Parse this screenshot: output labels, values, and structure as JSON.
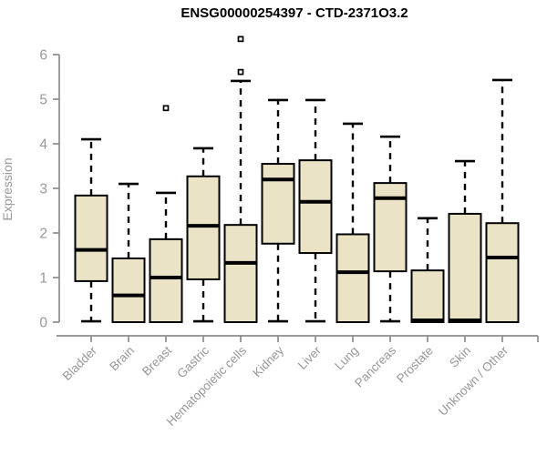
{
  "chart": {
    "title": "ENSG00000254397 - CTD-2371O3.2",
    "ylabel": "Expression"
  },
  "chart_data": {
    "type": "boxplot",
    "title": "ENSG00000254397 - CTD-2371O3.2",
    "xlabel": "",
    "ylabel": "Expression",
    "ylim": [
      0,
      6.4
    ],
    "yticks": [
      0,
      1,
      2,
      3,
      4,
      5,
      6
    ],
    "grid": false,
    "legend": "none",
    "categories": [
      "Bladder",
      "Brain",
      "Breast",
      "Gastric",
      "Hematopoietic cells",
      "Kidney",
      "Liver",
      "Lung",
      "Pancreas",
      "Prostate",
      "Skin",
      "Unknown / Other"
    ],
    "series": [
      {
        "category": "Bladder",
        "whisker_low": 0.02,
        "q1": 0.92,
        "median": 1.62,
        "q3": 2.84,
        "whisker_high": 4.1,
        "outliers": []
      },
      {
        "category": "Brain",
        "whisker_low": 0.0,
        "q1": 0.0,
        "median": 0.6,
        "q3": 1.43,
        "whisker_high": 3.1,
        "outliers": []
      },
      {
        "category": "Breast",
        "whisker_low": 0.0,
        "q1": 0.0,
        "median": 1.0,
        "q3": 1.86,
        "whisker_high": 2.9,
        "outliers": [
          4.8
        ]
      },
      {
        "category": "Gastric",
        "whisker_low": 0.02,
        "q1": 0.96,
        "median": 2.16,
        "q3": 3.27,
        "whisker_high": 3.9,
        "outliers": []
      },
      {
        "category": "Hematopoietic cells",
        "whisker_low": 0.0,
        "q1": 0.0,
        "median": 1.33,
        "q3": 2.18,
        "whisker_high": 5.41,
        "outliers": [
          5.61,
          6.35
        ]
      },
      {
        "category": "Kidney",
        "whisker_low": 0.02,
        "q1": 1.76,
        "median": 3.2,
        "q3": 3.55,
        "whisker_high": 4.98,
        "outliers": []
      },
      {
        "category": "Liver",
        "whisker_low": 0.02,
        "q1": 1.55,
        "median": 2.7,
        "q3": 3.63,
        "whisker_high": 4.98,
        "outliers": []
      },
      {
        "category": "Lung",
        "whisker_low": 0.0,
        "q1": 0.0,
        "median": 1.12,
        "q3": 1.97,
        "whisker_high": 4.45,
        "outliers": []
      },
      {
        "category": "Pancreas",
        "whisker_low": 0.02,
        "q1": 1.14,
        "median": 2.78,
        "q3": 3.12,
        "whisker_high": 4.16,
        "outliers": []
      },
      {
        "category": "Prostate",
        "whisker_low": 0.0,
        "q1": 0.0,
        "median": 0.04,
        "q3": 1.16,
        "whisker_high": 2.33,
        "outliers": []
      },
      {
        "category": "Skin",
        "whisker_low": 0.0,
        "q1": 0.0,
        "median": 0.04,
        "q3": 2.43,
        "whisker_high": 3.61,
        "outliers": []
      },
      {
        "category": "Unknown / Other",
        "whisker_low": 0.0,
        "q1": 0.0,
        "median": 1.45,
        "q3": 2.22,
        "whisker_high": 5.43,
        "outliers": []
      }
    ],
    "colors": {
      "background": "#FFFFFF",
      "box_fill": "#EBE3C5",
      "box_border": "#000000",
      "median": "#000000",
      "whisker": "#000000",
      "outlier_fill": "#FFFFFF",
      "outlier_border": "#000000",
      "axis": "#8C8C8C",
      "tick_label": "#989898",
      "title": "#000000"
    }
  }
}
